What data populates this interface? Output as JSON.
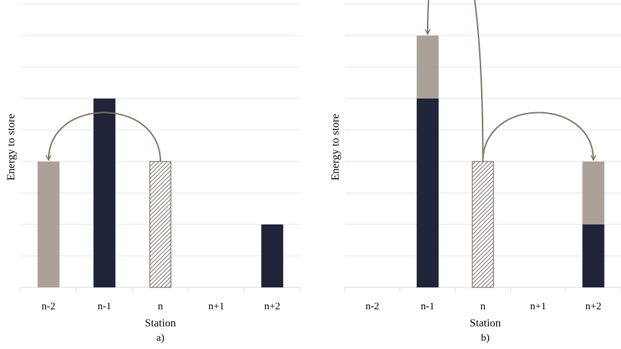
{
  "chart_data": [
    {
      "type": "bar",
      "panel_label": "a)",
      "xlabel": "Station",
      "ylabel": "Energy to store",
      "categories": [
        "n-2",
        "n-1",
        "n",
        "n+1",
        "n+2"
      ],
      "ylim": [
        0,
        9
      ],
      "grid": true,
      "series": [
        {
          "values": [
            0,
            6,
            0,
            0,
            2
          ],
          "color": "#1f2438",
          "style": "solid"
        },
        {
          "values": [
            4,
            0,
            0,
            0,
            0
          ],
          "color": "#aba198",
          "style": "solid"
        },
        {
          "values": [
            0,
            0,
            4,
            0,
            0
          ],
          "color": "#7a726b",
          "style": "hatched"
        }
      ],
      "arrows": [
        {
          "from": "n",
          "to": "n-2",
          "color": "#7d7168"
        }
      ]
    },
    {
      "type": "bar",
      "panel_label": "b)",
      "xlabel": "Station",
      "ylabel": "Energy to store",
      "categories": [
        "n-2",
        "n-1",
        "n",
        "n+1",
        "n+2"
      ],
      "ylim": [
        0,
        9
      ],
      "grid": true,
      "series": [
        {
          "values": [
            0,
            6,
            0,
            0,
            2
          ],
          "color": "#1f2438",
          "style": "solid"
        },
        {
          "values": [
            0,
            2,
            0,
            0,
            2
          ],
          "color": "#aba198",
          "style": "solid"
        },
        {
          "values": [
            0,
            0,
            4,
            0,
            0
          ],
          "color": "#7a726b",
          "style": "hatched"
        }
      ],
      "arrows": [
        {
          "from": "n",
          "to": "n-1",
          "color": "#7d7168"
        },
        {
          "from": "n",
          "to": "n+2",
          "color": "#7d7168"
        }
      ]
    }
  ]
}
